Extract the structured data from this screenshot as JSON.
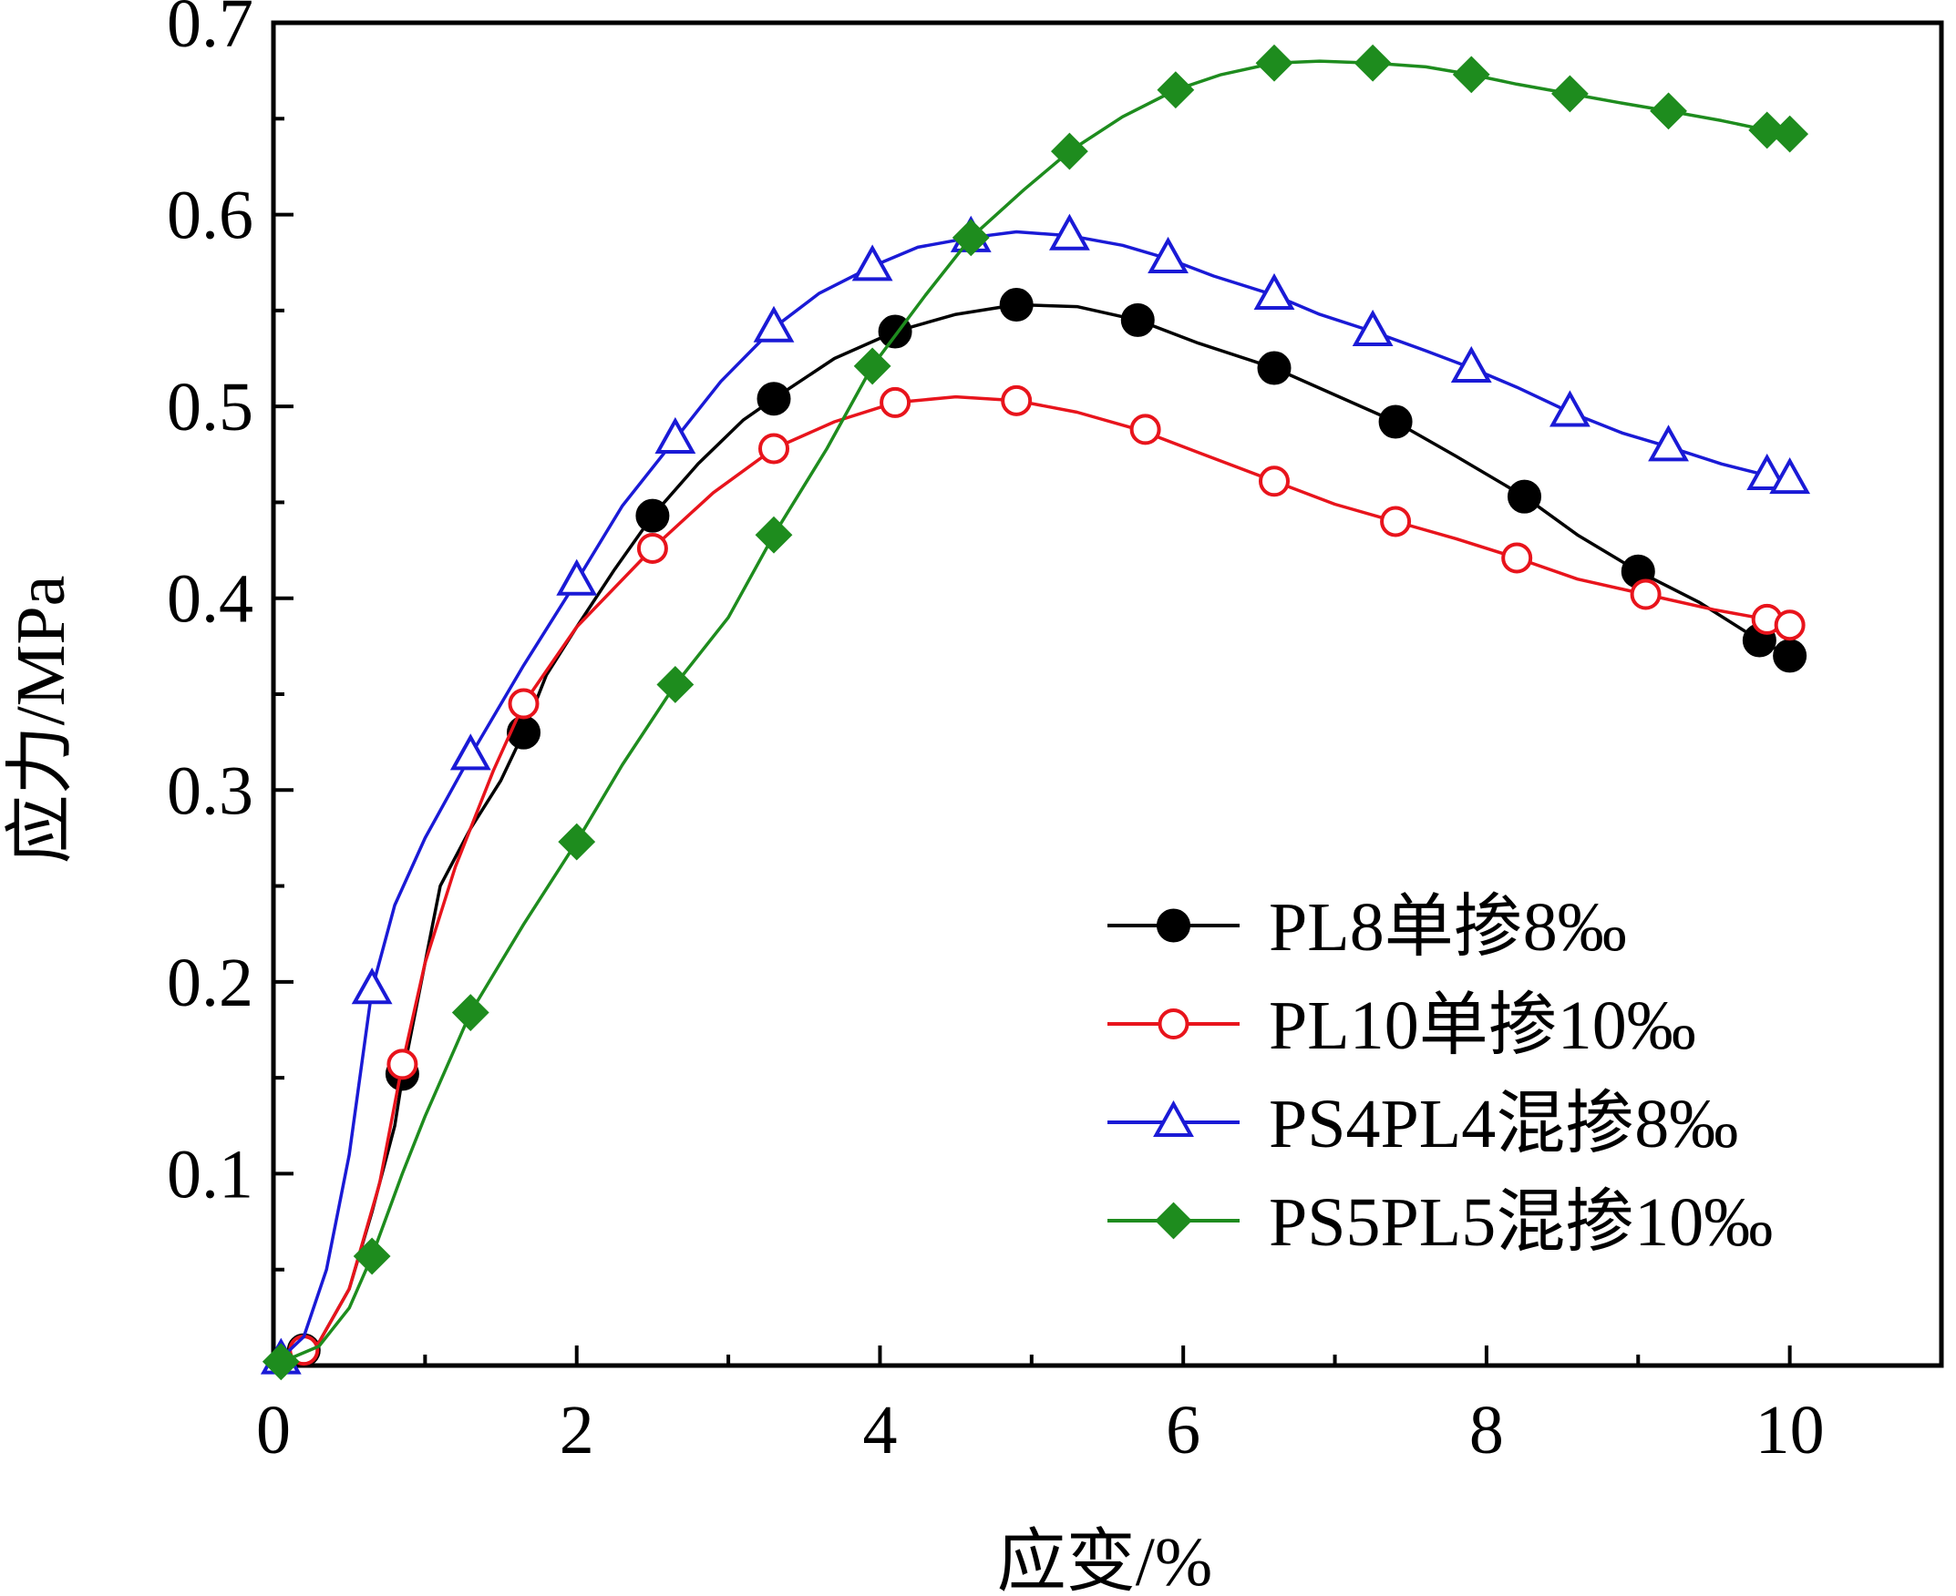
{
  "chart_data": {
    "type": "line",
    "title": "",
    "xlabel": "应变/%",
    "ylabel": "应力/MPa",
    "xlim": [
      0,
      11
    ],
    "ylim": [
      0,
      0.7
    ],
    "xticks": [
      0,
      2,
      4,
      6,
      8,
      10
    ],
    "xtick_labels": [
      "0",
      "2",
      "4",
      "6",
      "8",
      "10"
    ],
    "yticks": [
      0.1,
      0.2,
      0.3,
      0.4,
      0.5,
      0.6,
      0.7
    ],
    "ytick_labels": [
      "0.1",
      "0.2",
      "0.3",
      "0.4",
      "0.5",
      "0.6",
      "0.7"
    ],
    "grid": false,
    "legend_position": "bottom-right",
    "series": [
      {
        "name": "PL8单掺8‰",
        "color": "#000000",
        "marker": "filled-circle",
        "line": [
          [
            0,
            0
          ],
          [
            0.3,
            0.012
          ],
          [
            0.5,
            0.04
          ],
          [
            0.65,
            0.08
          ],
          [
            0.8,
            0.125
          ],
          [
            0.85,
            0.15
          ],
          [
            1.0,
            0.21
          ],
          [
            1.1,
            0.25
          ],
          [
            1.3,
            0.28
          ],
          [
            1.5,
            0.305
          ],
          [
            1.65,
            0.33
          ],
          [
            1.8,
            0.36
          ],
          [
            2.0,
            0.385
          ],
          [
            2.25,
            0.415
          ],
          [
            2.5,
            0.443
          ],
          [
            2.8,
            0.47
          ],
          [
            3.1,
            0.493
          ],
          [
            3.3,
            0.504
          ],
          [
            3.7,
            0.525
          ],
          [
            4.1,
            0.539
          ],
          [
            4.5,
            0.548
          ],
          [
            4.9,
            0.553
          ],
          [
            5.3,
            0.552
          ],
          [
            5.7,
            0.545
          ],
          [
            6.1,
            0.533
          ],
          [
            6.6,
            0.52
          ],
          [
            7.0,
            0.506
          ],
          [
            7.4,
            0.492
          ],
          [
            7.8,
            0.474
          ],
          [
            8.25,
            0.453
          ],
          [
            8.6,
            0.433
          ],
          [
            9.0,
            0.414
          ],
          [
            9.4,
            0.398
          ],
          [
            9.8,
            0.378
          ],
          [
            10.0,
            0.37
          ]
        ],
        "points": [
          [
            0.2,
            0.008
          ],
          [
            0.85,
            0.152
          ],
          [
            1.65,
            0.33
          ],
          [
            2.5,
            0.443
          ],
          [
            3.3,
            0.504
          ],
          [
            4.1,
            0.539
          ],
          [
            4.9,
            0.553
          ],
          [
            5.7,
            0.545
          ],
          [
            6.6,
            0.52
          ],
          [
            7.4,
            0.492
          ],
          [
            8.25,
            0.453
          ],
          [
            9.0,
            0.414
          ],
          [
            9.8,
            0.378
          ],
          [
            10.0,
            0.37
          ]
        ]
      },
      {
        "name": "PL10单掺10‰",
        "color": "#e8141c",
        "marker": "open-circle",
        "line": [
          [
            0,
            0
          ],
          [
            0.3,
            0.012
          ],
          [
            0.5,
            0.04
          ],
          [
            0.7,
            0.095
          ],
          [
            0.85,
            0.157
          ],
          [
            1.0,
            0.21
          ],
          [
            1.2,
            0.26
          ],
          [
            1.45,
            0.31
          ],
          [
            1.65,
            0.345
          ],
          [
            2.0,
            0.385
          ],
          [
            2.5,
            0.426
          ],
          [
            2.9,
            0.455
          ],
          [
            3.3,
            0.478
          ],
          [
            3.7,
            0.492
          ],
          [
            4.1,
            0.502
          ],
          [
            4.5,
            0.505
          ],
          [
            4.9,
            0.503
          ],
          [
            5.3,
            0.497
          ],
          [
            5.7,
            0.488
          ],
          [
            6.1,
            0.476
          ],
          [
            6.6,
            0.461
          ],
          [
            7.0,
            0.449
          ],
          [
            7.4,
            0.44
          ],
          [
            7.8,
            0.431
          ],
          [
            8.2,
            0.421
          ],
          [
            8.6,
            0.41
          ],
          [
            9.05,
            0.402
          ],
          [
            9.5,
            0.394
          ],
          [
            9.85,
            0.389
          ],
          [
            10.0,
            0.386
          ]
        ],
        "points": [
          [
            0.2,
            0.008
          ],
          [
            0.85,
            0.157
          ],
          [
            1.65,
            0.345
          ],
          [
            2.5,
            0.426
          ],
          [
            3.3,
            0.478
          ],
          [
            4.1,
            0.502
          ],
          [
            4.9,
            0.503
          ],
          [
            5.75,
            0.488
          ],
          [
            6.6,
            0.461
          ],
          [
            7.4,
            0.44
          ],
          [
            8.2,
            0.421
          ],
          [
            9.05,
            0.402
          ],
          [
            9.85,
            0.389
          ],
          [
            10.0,
            0.386
          ]
        ]
      },
      {
        "name": "PS4PL4混掺8‰",
        "color": "#1a1ad6",
        "marker": "open-triangle",
        "line": [
          [
            0,
            0
          ],
          [
            0.2,
            0.015
          ],
          [
            0.35,
            0.05
          ],
          [
            0.5,
            0.11
          ],
          [
            0.65,
            0.196
          ],
          [
            0.8,
            0.24
          ],
          [
            1.0,
            0.275
          ],
          [
            1.3,
            0.318
          ],
          [
            1.65,
            0.365
          ],
          [
            2.0,
            0.409
          ],
          [
            2.3,
            0.448
          ],
          [
            2.65,
            0.483
          ],
          [
            2.95,
            0.513
          ],
          [
            3.3,
            0.541
          ],
          [
            3.6,
            0.559
          ],
          [
            3.95,
            0.573
          ],
          [
            4.25,
            0.583
          ],
          [
            4.6,
            0.588
          ],
          [
            4.9,
            0.591
          ],
          [
            5.25,
            0.589
          ],
          [
            5.6,
            0.584
          ],
          [
            5.9,
            0.577
          ],
          [
            6.2,
            0.568
          ],
          [
            6.6,
            0.558
          ],
          [
            6.9,
            0.548
          ],
          [
            7.25,
            0.539
          ],
          [
            7.6,
            0.529
          ],
          [
            7.9,
            0.52
          ],
          [
            8.2,
            0.51
          ],
          [
            8.55,
            0.497
          ],
          [
            8.9,
            0.486
          ],
          [
            9.2,
            0.479
          ],
          [
            9.55,
            0.47
          ],
          [
            9.85,
            0.464
          ],
          [
            10.0,
            0.462
          ]
        ],
        "points": [
          [
            0.05,
            0.003
          ],
          [
            0.65,
            0.196
          ],
          [
            1.3,
            0.318
          ],
          [
            2.0,
            0.409
          ],
          [
            2.65,
            0.483
          ],
          [
            3.3,
            0.541
          ],
          [
            3.95,
            0.573
          ],
          [
            4.6,
            0.588
          ],
          [
            5.25,
            0.589
          ],
          [
            5.9,
            0.577
          ],
          [
            6.6,
            0.558
          ],
          [
            7.25,
            0.539
          ],
          [
            7.9,
            0.52
          ],
          [
            8.55,
            0.497
          ],
          [
            9.2,
            0.479
          ],
          [
            9.85,
            0.464
          ],
          [
            10.0,
            0.462
          ]
        ]
      },
      {
        "name": "PS5PL5混掺10‰",
        "color": "#1e8c1e",
        "marker": "filled-diamond",
        "line": [
          [
            0,
            0
          ],
          [
            0.3,
            0.01
          ],
          [
            0.5,
            0.03
          ],
          [
            0.65,
            0.057
          ],
          [
            0.85,
            0.1
          ],
          [
            1.0,
            0.13
          ],
          [
            1.3,
            0.184
          ],
          [
            1.65,
            0.23
          ],
          [
            2.0,
            0.273
          ],
          [
            2.3,
            0.313
          ],
          [
            2.65,
            0.355
          ],
          [
            3.0,
            0.39
          ],
          [
            3.3,
            0.433
          ],
          [
            3.65,
            0.478
          ],
          [
            3.95,
            0.521
          ],
          [
            4.3,
            0.558
          ],
          [
            4.6,
            0.588
          ],
          [
            4.95,
            0.613
          ],
          [
            5.25,
            0.633
          ],
          [
            5.6,
            0.651
          ],
          [
            5.95,
            0.665
          ],
          [
            6.25,
            0.673
          ],
          [
            6.6,
            0.679
          ],
          [
            6.9,
            0.68
          ],
          [
            7.25,
            0.679
          ],
          [
            7.6,
            0.677
          ],
          [
            7.9,
            0.673
          ],
          [
            8.2,
            0.668
          ],
          [
            8.55,
            0.663
          ],
          [
            8.9,
            0.658
          ],
          [
            9.2,
            0.654
          ],
          [
            9.55,
            0.649
          ],
          [
            9.85,
            0.644
          ],
          [
            10.0,
            0.642
          ]
        ],
        "points": [
          [
            0.05,
            0.002
          ],
          [
            0.65,
            0.057
          ],
          [
            1.3,
            0.184
          ],
          [
            2.0,
            0.273
          ],
          [
            2.65,
            0.355
          ],
          [
            3.3,
            0.433
          ],
          [
            3.95,
            0.521
          ],
          [
            4.6,
            0.588
          ],
          [
            5.25,
            0.633
          ],
          [
            5.95,
            0.665
          ],
          [
            6.6,
            0.679
          ],
          [
            7.25,
            0.679
          ],
          [
            7.9,
            0.673
          ],
          [
            8.55,
            0.663
          ],
          [
            9.2,
            0.654
          ],
          [
            9.85,
            0.644
          ],
          [
            10.0,
            0.642
          ]
        ]
      }
    ]
  }
}
